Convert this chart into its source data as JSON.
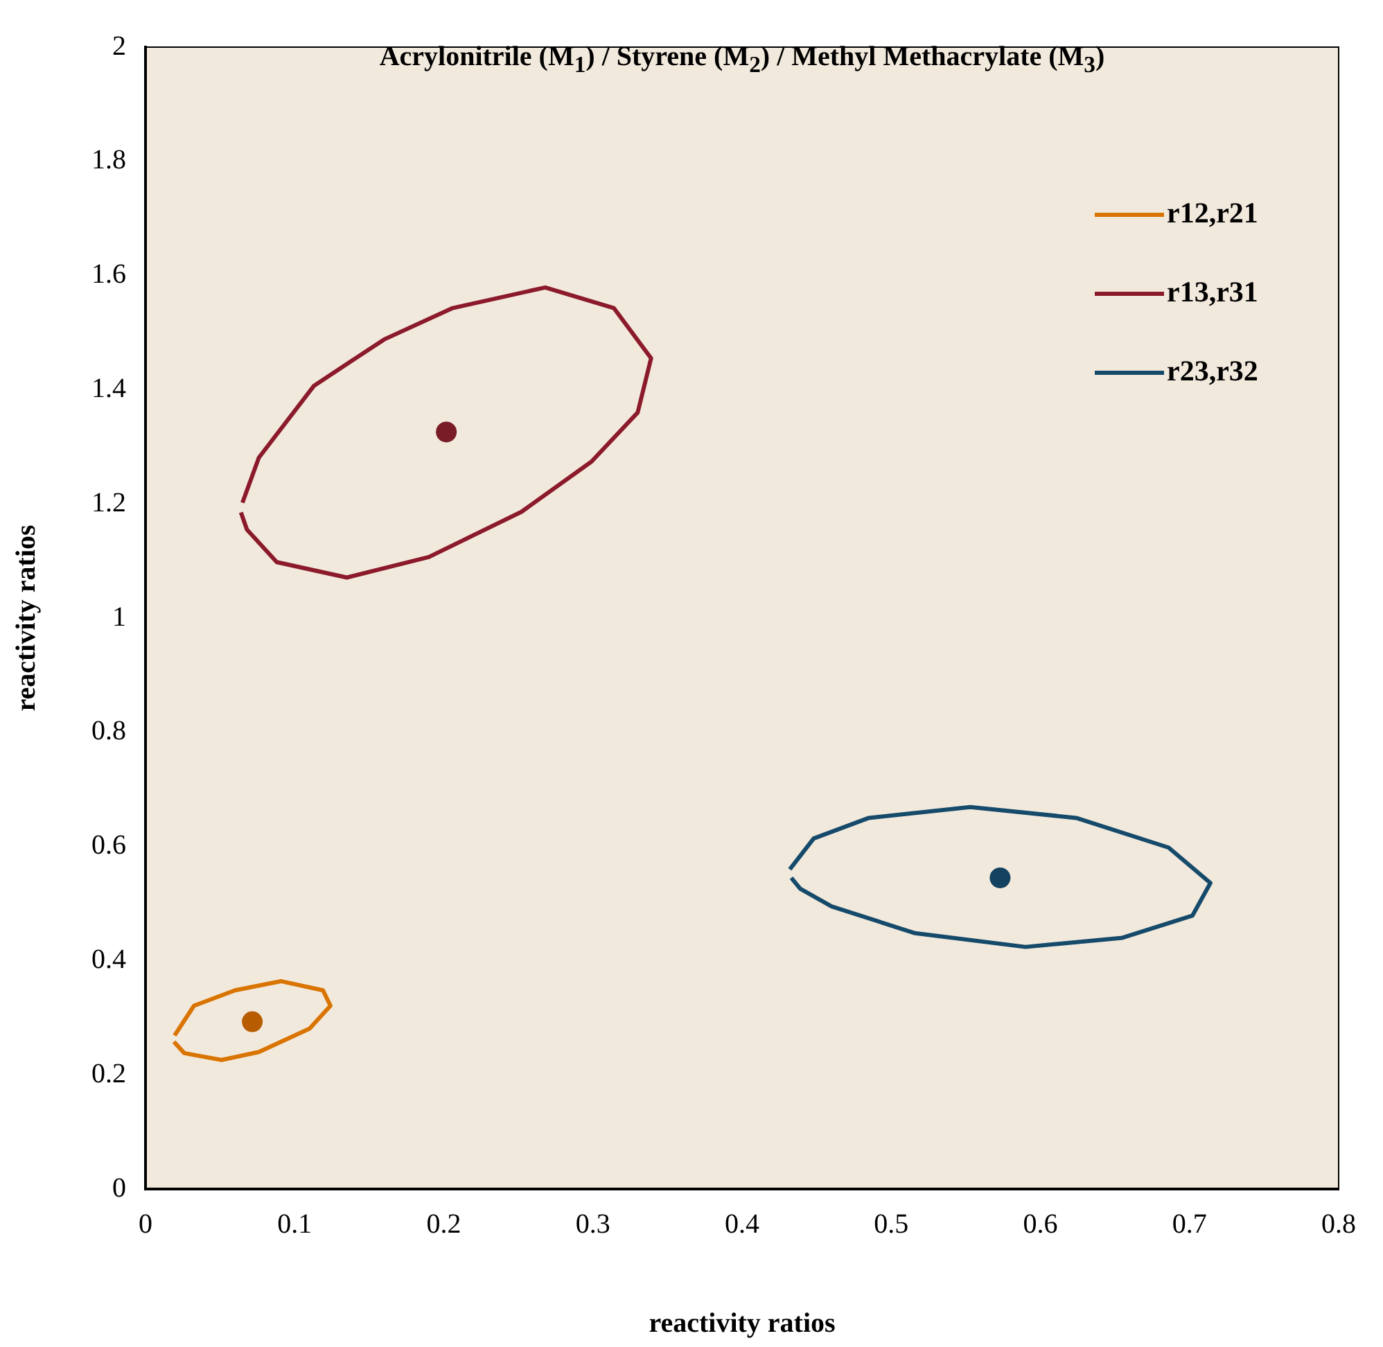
{
  "chart_data": {
    "type": "scatter",
    "title": "Acrylonitrile (M$_{1}$) / Styrene (M$_{2}$) / Methyl Methacrylate (M$_{3}$)",
    "xlabel": "reactivity ratios",
    "ylabel": "reactivity ratios",
    "xlim": [
      0,
      0.8
    ],
    "ylim": [
      0,
      2
    ],
    "xticks": [
      0,
      0.1,
      0.2,
      0.3,
      0.4,
      0.5,
      0.6,
      0.7,
      0.8
    ],
    "yticks": [
      0,
      0.2,
      0.4,
      0.6,
      0.8,
      1,
      1.2,
      1.4,
      1.6,
      1.8,
      2
    ],
    "grid": false,
    "legend": "top right",
    "series": [
      {
        "name": "r12,r21",
        "type": "line",
        "marker": "none",
        "color": "#d97400",
        "x": [
          0.0195,
          0.0325,
          0.06,
          0.091,
          0.119,
          0.124,
          0.11,
          0.076,
          0.051,
          0.026,
          0.019
        ],
        "values": [
          0.269,
          0.321,
          0.348,
          0.364,
          0.348,
          0.321,
          0.281,
          0.24,
          0.226,
          0.238,
          0.258
        ]
      },
      {
        "name": "r13,r31",
        "type": "line",
        "marker": "none",
        "color": "#8b1a2b",
        "x": [
          0.065,
          0.076,
          0.113,
          0.16,
          0.206,
          0.268,
          0.314,
          0.339,
          0.33,
          0.299,
          0.252,
          0.19,
          0.135,
          0.088,
          0.068,
          0.064
        ],
        "values": [
          1.202,
          1.281,
          1.407,
          1.488,
          1.543,
          1.579,
          1.543,
          1.455,
          1.36,
          1.274,
          1.186,
          1.107,
          1.071,
          1.098,
          1.155,
          1.185
        ]
      },
      {
        "name": "r23,r32",
        "type": "line",
        "marker": "none",
        "color": "#154a6b",
        "x": [
          0.432,
          0.448,
          0.485,
          0.553,
          0.624,
          0.686,
          0.714,
          0.702,
          0.655,
          0.59,
          0.516,
          0.46,
          0.439,
          0.433
        ],
        "values": [
          0.56,
          0.614,
          0.65,
          0.669,
          0.65,
          0.598,
          0.536,
          0.479,
          0.44,
          0.424,
          0.448,
          0.495,
          0.526,
          0.545
        ]
      },
      {
        "type": "scatter",
        "marker": "circle",
        "color": "#b85c00",
        "x": [
          0.0716
        ],
        "values": [
          0.293
        ]
      },
      {
        "type": "scatter",
        "marker": "circle",
        "color": "#7a1c28",
        "x": [
          0.2017
        ],
        "values": [
          1.326
        ]
      },
      {
        "type": "scatter",
        "marker": "circle",
        "color": "#14425f",
        "x": [
          0.573
        ],
        "values": [
          0.545
        ]
      }
    ]
  }
}
